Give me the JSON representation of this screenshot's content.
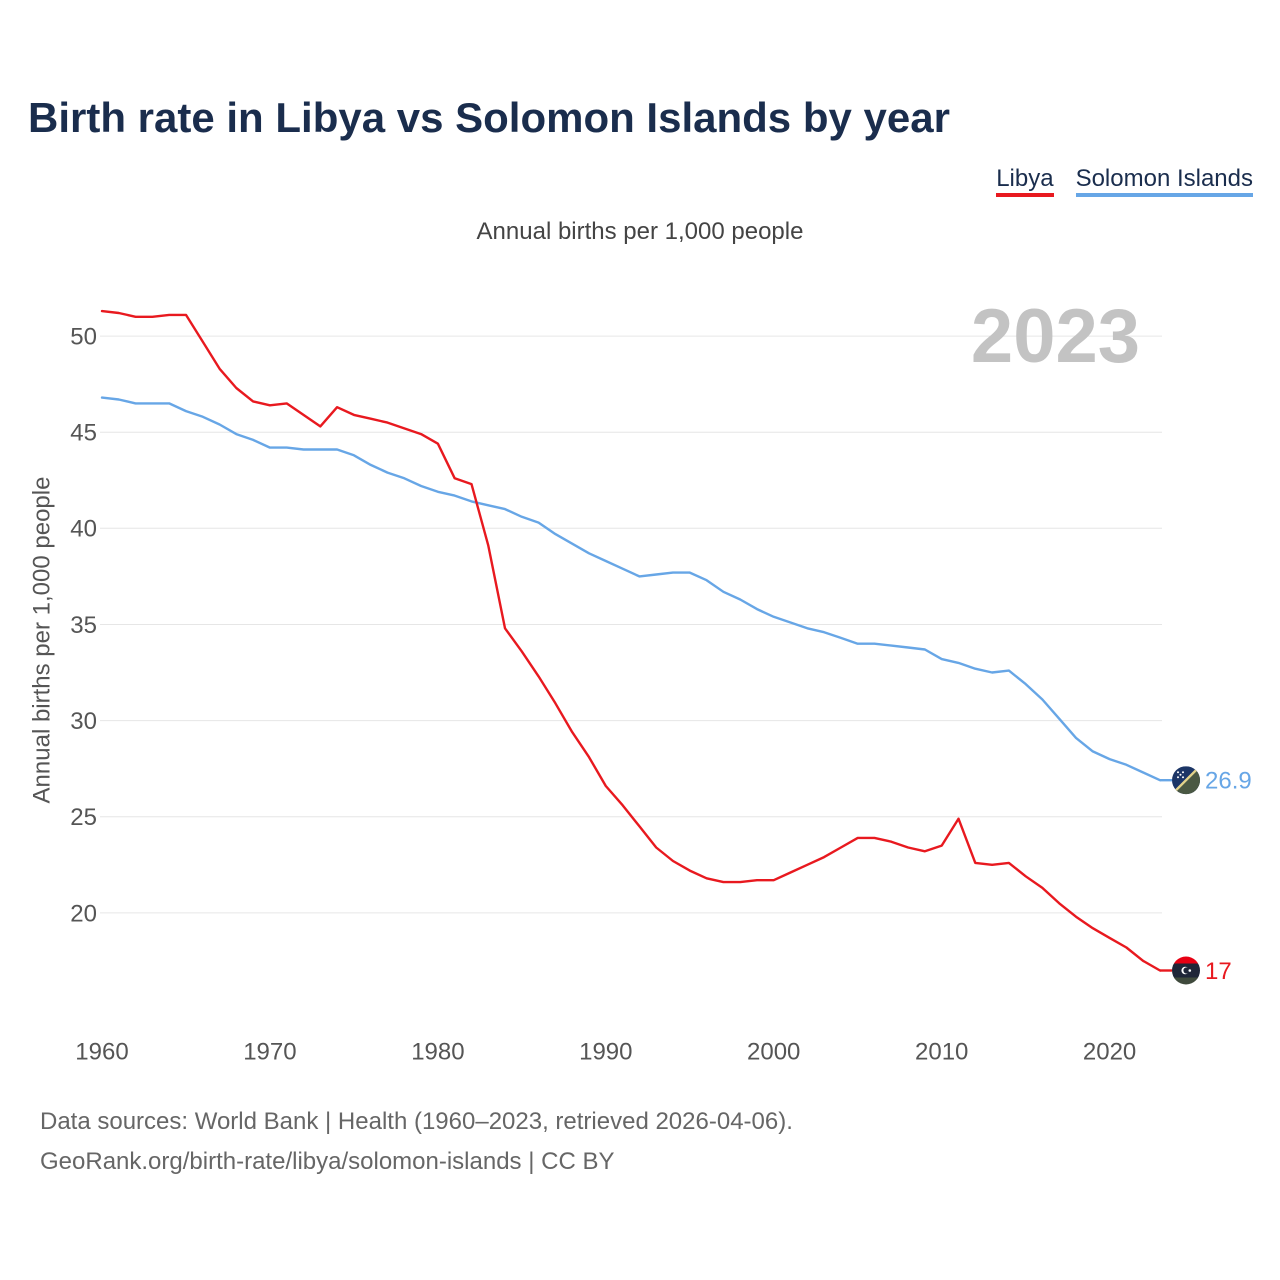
{
  "chart_data": {
    "type": "line",
    "title": "Birth rate in Libya vs Solomon Islands by year",
    "subtitle": "Annual births per 1,000 people",
    "ylabel": "Annual births per 1,000 people",
    "current_year_label": "2023",
    "grid": true,
    "xlim": [
      1960,
      2023
    ],
    "ylim": [
      15,
      52.5
    ],
    "xticks": [
      1960,
      1970,
      1980,
      1990,
      2000,
      2010,
      2020
    ],
    "yticks": [
      20,
      25,
      30,
      35,
      40,
      45,
      50
    ],
    "x": [
      1960,
      1961,
      1962,
      1963,
      1964,
      1965,
      1966,
      1967,
      1968,
      1969,
      1970,
      1971,
      1972,
      1973,
      1974,
      1975,
      1976,
      1977,
      1978,
      1979,
      1980,
      1981,
      1982,
      1983,
      1984,
      1985,
      1986,
      1987,
      1988,
      1989,
      1990,
      1991,
      1992,
      1993,
      1994,
      1995,
      1996,
      1997,
      1998,
      1999,
      2000,
      2001,
      2002,
      2003,
      2004,
      2005,
      2006,
      2007,
      2008,
      2009,
      2010,
      2011,
      2012,
      2013,
      2014,
      2015,
      2016,
      2017,
      2018,
      2019,
      2020,
      2021,
      2022,
      2023
    ],
    "series": [
      {
        "name": "Libya",
        "color": "#e8191f",
        "flag_icon": "libya-flag-icon",
        "end_label": "17",
        "values": [
          51.3,
          51.2,
          51.0,
          51.0,
          51.1,
          51.1,
          49.7,
          48.3,
          47.3,
          46.6,
          46.4,
          46.5,
          45.9,
          45.3,
          46.3,
          45.9,
          45.7,
          45.5,
          45.2,
          44.9,
          44.4,
          42.6,
          42.3,
          39.1,
          34.8,
          33.6,
          32.3,
          30.9,
          29.4,
          28.1,
          26.6,
          25.6,
          24.5,
          23.4,
          22.7,
          22.2,
          21.8,
          21.6,
          21.6,
          21.7,
          21.7,
          22.1,
          22.5,
          22.9,
          23.4,
          23.9,
          23.9,
          23.7,
          23.4,
          23.2,
          23.5,
          24.9,
          22.6,
          22.5,
          22.6,
          21.9,
          21.3,
          20.5,
          19.8,
          19.2,
          18.7,
          18.2,
          17.5,
          17.0
        ]
      },
      {
        "name": "Solomon Islands",
        "color": "#67a6e6",
        "flag_icon": "solomon-islands-flag-icon",
        "end_label": "26.9",
        "values": [
          46.8,
          46.7,
          46.5,
          46.5,
          46.5,
          46.1,
          45.8,
          45.4,
          44.9,
          44.6,
          44.2,
          44.2,
          44.1,
          44.1,
          44.1,
          43.8,
          43.3,
          42.9,
          42.6,
          42.2,
          41.9,
          41.7,
          41.4,
          41.2,
          41.0,
          40.6,
          40.3,
          39.7,
          39.2,
          38.7,
          38.3,
          37.9,
          37.5,
          37.6,
          37.7,
          37.7,
          37.3,
          36.7,
          36.3,
          35.8,
          35.4,
          35.1,
          34.8,
          34.6,
          34.3,
          34.0,
          34.0,
          33.9,
          33.8,
          33.7,
          33.2,
          33.0,
          32.7,
          32.5,
          32.6,
          31.9,
          31.1,
          30.1,
          29.1,
          28.4,
          28.0,
          27.7,
          27.3,
          26.9
        ]
      }
    ]
  },
  "source": {
    "line1": "Data sources: World Bank | Health (1960–2023, retrieved 2026-04-06).",
    "line2": "GeoRank.org/birth-rate/libya/solomon-islands | CC BY"
  }
}
